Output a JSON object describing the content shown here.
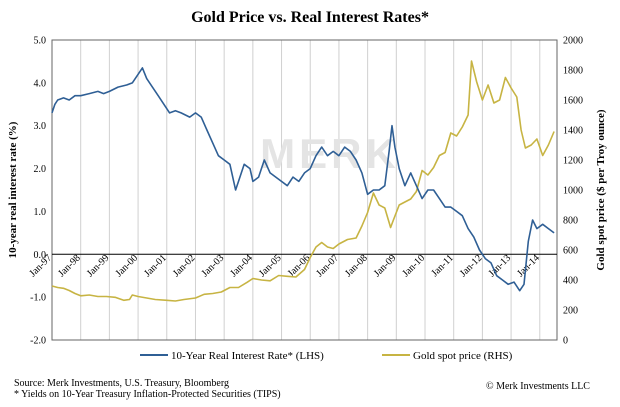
{
  "chart_data": {
    "type": "line",
    "title": "Gold Price vs. Real Interest Rates*",
    "ylabel_left": "10-year real interest rate (%)",
    "ylabel_right": "Gold spot price ($ per Troy ounce)",
    "ylim_left": [
      -2.0,
      5.0
    ],
    "ylim_right": [
      0,
      2000
    ],
    "xlim": [
      1997.0,
      2014.6
    ],
    "left_ticks": [
      "5.0",
      "4.0",
      "3.0",
      "2.0",
      "1.0",
      "0.0",
      "-1.0",
      "-2.0"
    ],
    "left_tick_values": [
      5,
      4,
      3,
      2,
      1,
      0,
      -1,
      -2
    ],
    "right_ticks": [
      "2000",
      "1800",
      "1600",
      "1400",
      "1200",
      "1000",
      "800",
      "600",
      "400",
      "200",
      "0"
    ],
    "right_tick_values": [
      2000,
      1800,
      1600,
      1400,
      1200,
      1000,
      800,
      600,
      400,
      200,
      0
    ],
    "x_ticks": [
      "Jan-97",
      "Jan-98",
      "Jan-99",
      "Jan-00",
      "Jan-01",
      "Jan-02",
      "Jan-03",
      "Jan-04",
      "Jan-05",
      "Jan-06",
      "Jan-07",
      "Jan-08",
      "Jan-09",
      "Jan-10",
      "Jan-11",
      "Jan-12",
      "Jan-13",
      "Jan-14"
    ],
    "x_tick_values": [
      1997,
      1998,
      1999,
      2000,
      2001,
      2002,
      2003,
      2004,
      2005,
      2006,
      2007,
      2008,
      2009,
      2010,
      2011,
      2012,
      2013,
      2014
    ],
    "grid": "vertical",
    "legend_position": "bottom",
    "series": [
      {
        "name": "10-Year Real Interest Rate* (LHS)",
        "axis": "left",
        "color": "#2f5f95",
        "x": [
          1997.0,
          1997.1,
          1997.2,
          1997.4,
          1997.6,
          1997.8,
          1998.0,
          1998.3,
          1998.6,
          1998.8,
          1999.0,
          1999.3,
          1999.6,
          1999.8,
          2000.0,
          2000.15,
          2000.3,
          2000.5,
          2000.7,
          2000.9,
          2001.1,
          2001.3,
          2001.5,
          2001.8,
          2002.0,
          2002.2,
          2002.4,
          2002.6,
          2002.8,
          2003.0,
          2003.2,
          2003.4,
          2003.5,
          2003.7,
          2003.9,
          2004.0,
          2004.2,
          2004.4,
          2004.6,
          2004.8,
          2005.0,
          2005.2,
          2005.4,
          2005.6,
          2005.8,
          2006.0,
          2006.2,
          2006.4,
          2006.6,
          2006.8,
          2007.0,
          2007.2,
          2007.4,
          2007.6,
          2007.8,
          2008.0,
          2008.2,
          2008.4,
          2008.6,
          2008.75,
          2008.85,
          2008.95,
          2009.1,
          2009.3,
          2009.5,
          2009.7,
          2009.9,
          2010.1,
          2010.3,
          2010.5,
          2010.7,
          2010.9,
          2011.1,
          2011.3,
          2011.5,
          2011.7,
          2011.9,
          2012.1,
          2012.3,
          2012.5,
          2012.7,
          2012.9,
          2013.1,
          2013.3,
          2013.45,
          2013.6,
          2013.75,
          2013.9,
          2014.1,
          2014.3,
          2014.5
        ],
        "values": [
          3.3,
          3.5,
          3.6,
          3.65,
          3.6,
          3.7,
          3.7,
          3.75,
          3.8,
          3.75,
          3.8,
          3.9,
          3.95,
          4.0,
          4.2,
          4.35,
          4.1,
          3.9,
          3.7,
          3.5,
          3.3,
          3.35,
          3.3,
          3.2,
          3.3,
          3.2,
          2.9,
          2.6,
          2.3,
          2.2,
          2.1,
          1.5,
          1.7,
          2.1,
          2.0,
          1.7,
          1.8,
          2.2,
          1.9,
          1.8,
          1.7,
          1.6,
          1.8,
          1.7,
          1.9,
          2.0,
          2.3,
          2.5,
          2.3,
          2.4,
          2.3,
          2.5,
          2.4,
          2.2,
          1.9,
          1.4,
          1.5,
          1.5,
          1.6,
          2.4,
          3.0,
          2.5,
          2.0,
          1.6,
          1.9,
          1.6,
          1.3,
          1.5,
          1.5,
          1.3,
          1.1,
          1.1,
          1.0,
          0.9,
          0.6,
          0.4,
          0.1,
          -0.1,
          -0.2,
          -0.5,
          -0.6,
          -0.7,
          -0.65,
          -0.85,
          -0.7,
          0.3,
          0.8,
          0.6,
          0.7,
          0.6,
          0.5
        ]
      },
      {
        "name": "Gold spot price (RHS)",
        "axis": "right",
        "color": "#c7b443",
        "x": [
          1997.0,
          1997.2,
          1997.4,
          1997.6,
          1997.8,
          1998.0,
          1998.3,
          1998.6,
          1998.9,
          1999.2,
          1999.5,
          1999.7,
          1999.8,
          2000.0,
          2000.3,
          2000.6,
          2001.0,
          2001.3,
          2001.6,
          2002.0,
          2002.3,
          2002.6,
          2002.9,
          2003.2,
          2003.5,
          2003.8,
          2004.0,
          2004.3,
          2004.6,
          2004.9,
          2005.2,
          2005.5,
          2005.8,
          2006.0,
          2006.2,
          2006.4,
          2006.6,
          2006.8,
          2007.0,
          2007.3,
          2007.6,
          2007.8,
          2008.0,
          2008.2,
          2008.4,
          2008.6,
          2008.8,
          2008.9,
          2009.1,
          2009.3,
          2009.5,
          2009.7,
          2009.9,
          2010.1,
          2010.3,
          2010.5,
          2010.7,
          2010.9,
          2011.1,
          2011.3,
          2011.5,
          2011.62,
          2011.8,
          2012.0,
          2012.2,
          2012.4,
          2012.6,
          2012.8,
          2013.0,
          2013.2,
          2013.35,
          2013.5,
          2013.7,
          2013.9,
          2014.1,
          2014.3,
          2014.5
        ],
        "values": [
          360,
          350,
          345,
          330,
          310,
          295,
          300,
          290,
          290,
          285,
          265,
          270,
          300,
          290,
          280,
          270,
          265,
          260,
          270,
          280,
          305,
          310,
          320,
          350,
          350,
          385,
          410,
          400,
          395,
          430,
          425,
          420,
          470,
          550,
          620,
          650,
          620,
          610,
          640,
          670,
          680,
          760,
          850,
          980,
          900,
          880,
          750,
          800,
          900,
          920,
          940,
          990,
          1130,
          1100,
          1150,
          1230,
          1250,
          1380,
          1360,
          1420,
          1500,
          1860,
          1720,
          1600,
          1700,
          1580,
          1600,
          1750,
          1680,
          1620,
          1400,
          1280,
          1300,
          1340,
          1230,
          1300,
          1390
        ]
      }
    ],
    "watermark": "MERK",
    "source_note": "Source: Merk Investments, U.S. Treasury, Bloomberg",
    "footnote": "* Yields on 10-Year Treasury Inflation-Protected Securities (TIPS)",
    "copyright": "© Merk Investments LLC"
  }
}
